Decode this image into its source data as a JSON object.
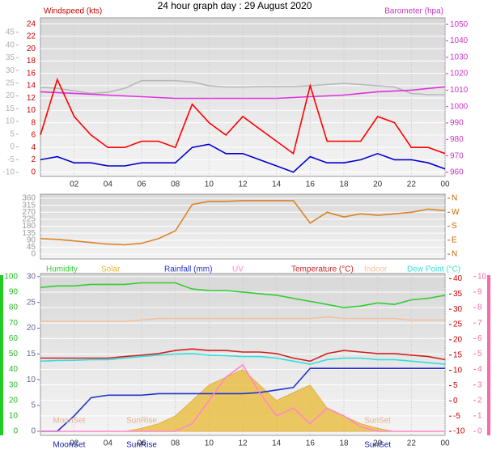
{
  "title": "24 hour graph day : 29 August 2020",
  "chart_data": [
    {
      "type": "line",
      "ylabel": "Windspeed (kts)",
      "y2label": "Barometer (hpa)",
      "xlim": [
        0,
        24
      ],
      "xticks": [
        {
          "value": 2,
          "label": "02"
        },
        {
          "value": 4,
          "label": "04"
        },
        {
          "value": 6,
          "label": "06"
        },
        {
          "value": 8,
          "label": "08"
        },
        10,
        12,
        14,
        16,
        18,
        20,
        22,
        {
          "value": 24,
          "label": "00"
        }
      ],
      "ylim": [
        -0.7,
        25
      ],
      "yticks": [
        0,
        2,
        4,
        6,
        8,
        10,
        12,
        14,
        16,
        18,
        20,
        22,
        24
      ],
      "ycolor": "#cc0000",
      "y2lim": [
        957.5,
        1054
      ],
      "y2ticks": [
        960,
        970,
        980,
        990,
        1000,
        1010,
        1020,
        1030,
        1040,
        1050
      ],
      "y2color": "#cc33cc",
      "y3lim": [
        -11.6,
        50.7
      ],
      "y3ticks": [
        -10,
        -5,
        0,
        5,
        10,
        15,
        20,
        25,
        30,
        35,
        40,
        45
      ],
      "y3color": "#b0b0b0",
      "x": [
        0,
        1,
        2,
        3,
        4,
        5,
        6,
        7,
        8,
        9,
        10,
        11,
        12,
        13,
        14,
        15,
        16,
        17,
        18,
        19,
        20,
        21,
        22,
        23,
        24
      ],
      "series": [
        {
          "color": "#b8b8b8",
          "axis": "y3",
          "values": [
            23.4,
            23,
            22,
            21,
            21.5,
            23,
            26,
            26,
            26,
            25.5,
            24,
            23.5,
            23.5,
            23.7,
            23.7,
            23.7,
            24,
            24.5,
            25,
            24.5,
            24,
            23.5,
            21,
            20.5,
            20.5
          ]
        },
        {
          "color": "#dd33dd",
          "axis": "y2",
          "values": [
            1009,
            1008.5,
            1008,
            1007.5,
            1007,
            1006.5,
            1006,
            1005.5,
            1005,
            1005,
            1005,
            1005,
            1005,
            1005,
            1005,
            1005.5,
            1006,
            1006.5,
            1007,
            1008,
            1009,
            1009.5,
            1010,
            1011,
            1012
          ]
        },
        {
          "color": "#ff0000",
          "axis": "y",
          "values": [
            6,
            15,
            9,
            6,
            4,
            4,
            5,
            5,
            4,
            11,
            8,
            6,
            9,
            7,
            5,
            3,
            14,
            5,
            5,
            5,
            9,
            8,
            4,
            4,
            3
          ]
        },
        {
          "color": "#0000cc",
          "axis": "y",
          "values": [
            2,
            2.5,
            1.5,
            1.5,
            1,
            1,
            1.5,
            1.5,
            1.5,
            4,
            4.5,
            3,
            3,
            2,
            1,
            0,
            2.5,
            1.5,
            1.5,
            2,
            3,
            2,
            2,
            1.5,
            0.5
          ]
        }
      ]
    },
    {
      "type": "line",
      "xlim": [
        0,
        24
      ],
      "ylim": [
        -31,
        386
      ],
      "yticks": [
        0,
        45,
        90,
        135,
        180,
        225,
        270,
        315,
        360
      ],
      "ycolor": "#999999",
      "y2lim": [
        -31,
        386
      ],
      "y2ticks": [
        {
          "value": 0,
          "label": "N"
        },
        {
          "value": 90,
          "label": "E"
        },
        {
          "value": 180,
          "label": "S"
        },
        {
          "value": 270,
          "label": "W"
        },
        {
          "value": 360,
          "label": "N"
        }
      ],
      "y2color": "#cc6600",
      "x": [
        0,
        1,
        2,
        3,
        4,
        5,
        6,
        7,
        8,
        9,
        10,
        11,
        12,
        13,
        14,
        15,
        16,
        17,
        18,
        19,
        20,
        21,
        22,
        23,
        24
      ],
      "series": [
        {
          "color": "#d9842a",
          "axis": "y",
          "values": [
            100,
            95,
            85,
            75,
            65,
            60,
            70,
            100,
            150,
            320,
            340,
            340,
            345,
            345,
            345,
            345,
            200,
            270,
            240,
            260,
            250,
            260,
            270,
            290,
            280
          ]
        }
      ]
    },
    {
      "type": "line",
      "xlim": [
        0,
        24
      ],
      "xticks": [
        {
          "value": 2,
          "label": "02"
        },
        {
          "value": 4,
          "label": "04"
        },
        {
          "value": 6,
          "label": "06"
        },
        {
          "value": 8,
          "label": "08"
        },
        10,
        12,
        14,
        16,
        18,
        20,
        22,
        {
          "value": 24,
          "label": "00"
        }
      ],
      "ylim": [
        -2.6,
        102
      ],
      "yticks": [
        0,
        10,
        20,
        30,
        40,
        50,
        60,
        70,
        80,
        90,
        100
      ],
      "ycolor": "#22bb22",
      "y2lim": [
        -0.8,
        30.6
      ],
      "y2ticks": [
        0,
        5,
        10,
        15,
        20,
        25,
        30
      ],
      "y2color": "#666699",
      "y3lim": [
        -11.3,
        41.7
      ],
      "y3ticks": [
        -10,
        -5,
        0,
        5,
        10,
        15,
        20,
        25,
        30,
        35,
        40
      ],
      "y3color": "#cc0000",
      "y4lim": [
        -0.26,
        10.2
      ],
      "y4ticks": [
        0,
        1,
        2,
        3,
        4,
        5,
        6,
        7,
        8,
        9,
        10
      ],
      "y4color": "#ff66aa",
      "annotations": [
        {
          "text": "MoonSet",
          "x": 1.7
        },
        {
          "text": "SunRise",
          "x": 6
        },
        {
          "text": "SunSet",
          "x": 20
        }
      ],
      "x": [
        0,
        1,
        2,
        3,
        4,
        5,
        6,
        7,
        8,
        9,
        10,
        11,
        12,
        13,
        14,
        15,
        16,
        17,
        18,
        19,
        20,
        21,
        22,
        23,
        24
      ],
      "series": [
        {
          "name": "Humidity",
          "color": "#33cc33",
          "axis": "y",
          "values": [
            93,
            94,
            94,
            95,
            95,
            95,
            96,
            96,
            96,
            92,
            91,
            91,
            90,
            89,
            88,
            86,
            84,
            82,
            80,
            81,
            83,
            82,
            85,
            86,
            88
          ]
        },
        {
          "name": "Solar",
          "color": "#e8b830",
          "axis": "y",
          "fill": true,
          "values": [
            0,
            0,
            0,
            0,
            0,
            0,
            2,
            5,
            10,
            20,
            30,
            35,
            40,
            30,
            20,
            25,
            30,
            15,
            10,
            5,
            2,
            0,
            0,
            0,
            0
          ]
        },
        {
          "name": "Rainfall (mm)",
          "color": "#2233cc",
          "axis": "y2",
          "values": [
            0,
            0,
            3,
            6.5,
            7,
            7,
            7,
            7.3,
            7.3,
            7.3,
            7.3,
            7.3,
            7.3,
            7.5,
            8,
            8.5,
            12.2,
            12.2,
            12.2,
            12.2,
            12.2,
            12.2,
            12.2,
            12.2,
            12.2
          ]
        },
        {
          "name": "UV",
          "color": "#ff88cc",
          "axis": "y4",
          "values": [
            0,
            0,
            0,
            0,
            0,
            0,
            0,
            0,
            0,
            0.5,
            2,
            3.5,
            4.3,
            2.5,
            1,
            1.5,
            0.5,
            1.5,
            1,
            0.3,
            0,
            0,
            0,
            0,
            0
          ]
        },
        {
          "name": "Temperature (°C)",
          "color": "#cc2222",
          "axis": "y3",
          "values": [
            14,
            14,
            14,
            14,
            14,
            14.5,
            15,
            15.5,
            16.5,
            17,
            16.5,
            16.5,
            16,
            16,
            15.5,
            14,
            13,
            15.5,
            16.5,
            16,
            15.5,
            15.5,
            15,
            14.5,
            13.5
          ]
        },
        {
          "name": "Indoor",
          "color": "#f5c0a0",
          "axis": "y3",
          "values": [
            26,
            26,
            26,
            26,
            26,
            26,
            26.5,
            27,
            27,
            27,
            27,
            27,
            27,
            27,
            27,
            27,
            27,
            27.5,
            27,
            27,
            27,
            27,
            26.5,
            26.5,
            26.5
          ]
        },
        {
          "name": "Dew Point (°C)",
          "color": "#33dddd",
          "axis": "y3",
          "values": [
            13,
            13.2,
            13.3,
            13.5,
            13.5,
            14,
            14.5,
            15,
            15.3,
            15.5,
            15,
            14.8,
            14.5,
            14.5,
            14,
            13,
            12,
            13.5,
            14,
            14,
            13.5,
            13.5,
            13,
            12.5,
            12
          ]
        }
      ]
    }
  ]
}
